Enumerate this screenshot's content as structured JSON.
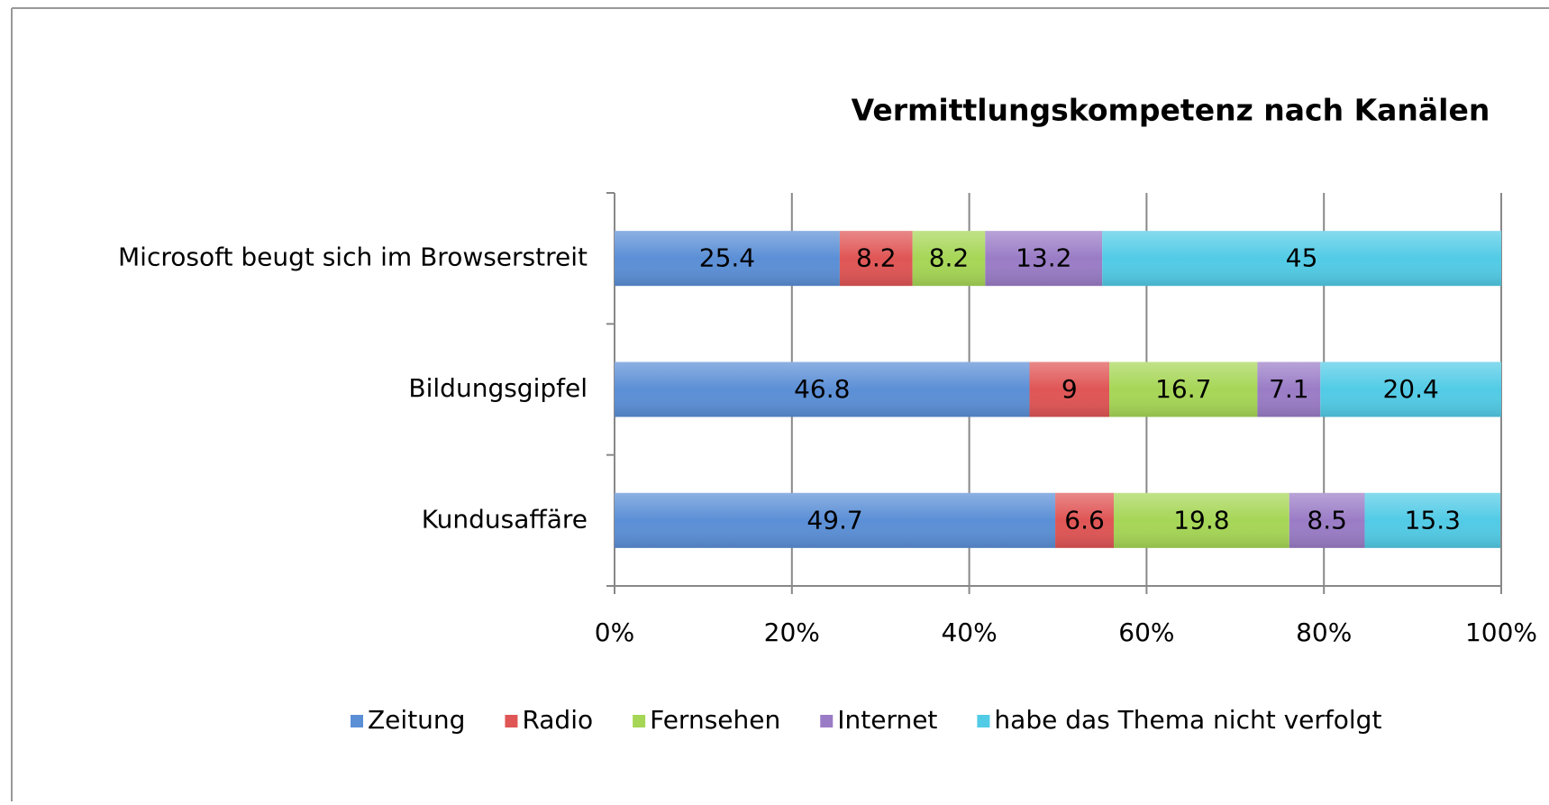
{
  "chart_data": {
    "type": "stacked_bar_horizontal",
    "title": "Vermittlungskompetenz nach Kanälen",
    "categories": [
      "Microsoft beugt sich im Browserstreit",
      "Bildungsgipfel",
      "Kundusaffäre"
    ],
    "series": [
      {
        "name": "Zeitung",
        "color": "#5b8fd6",
        "values": [
          25.4,
          46.8,
          49.7
        ]
      },
      {
        "name": "Radio",
        "color": "#e05555",
        "values": [
          8.2,
          9,
          6.6
        ]
      },
      {
        "name": "Fernsehen",
        "color": "#a6d656",
        "values": [
          8.2,
          16.7,
          19.8
        ]
      },
      {
        "name": "Internet",
        "color": "#9a7cc6",
        "values": [
          13.2,
          7.1,
          8.5
        ]
      },
      {
        "name": "habe das Thema nicht verfolgt",
        "color": "#52cbe6",
        "values": [
          45,
          20.4,
          15.3
        ]
      }
    ],
    "xlim": [
      0,
      100
    ],
    "xticks": [
      {
        "value": 0,
        "label": "0%"
      },
      {
        "value": 20,
        "label": "20%"
      },
      {
        "value": 40,
        "label": "40%"
      },
      {
        "value": 60,
        "label": "60%"
      },
      {
        "value": 80,
        "label": "80%"
      },
      {
        "value": 100,
        "label": "100%"
      }
    ],
    "grid": true,
    "legend": "bottom"
  }
}
